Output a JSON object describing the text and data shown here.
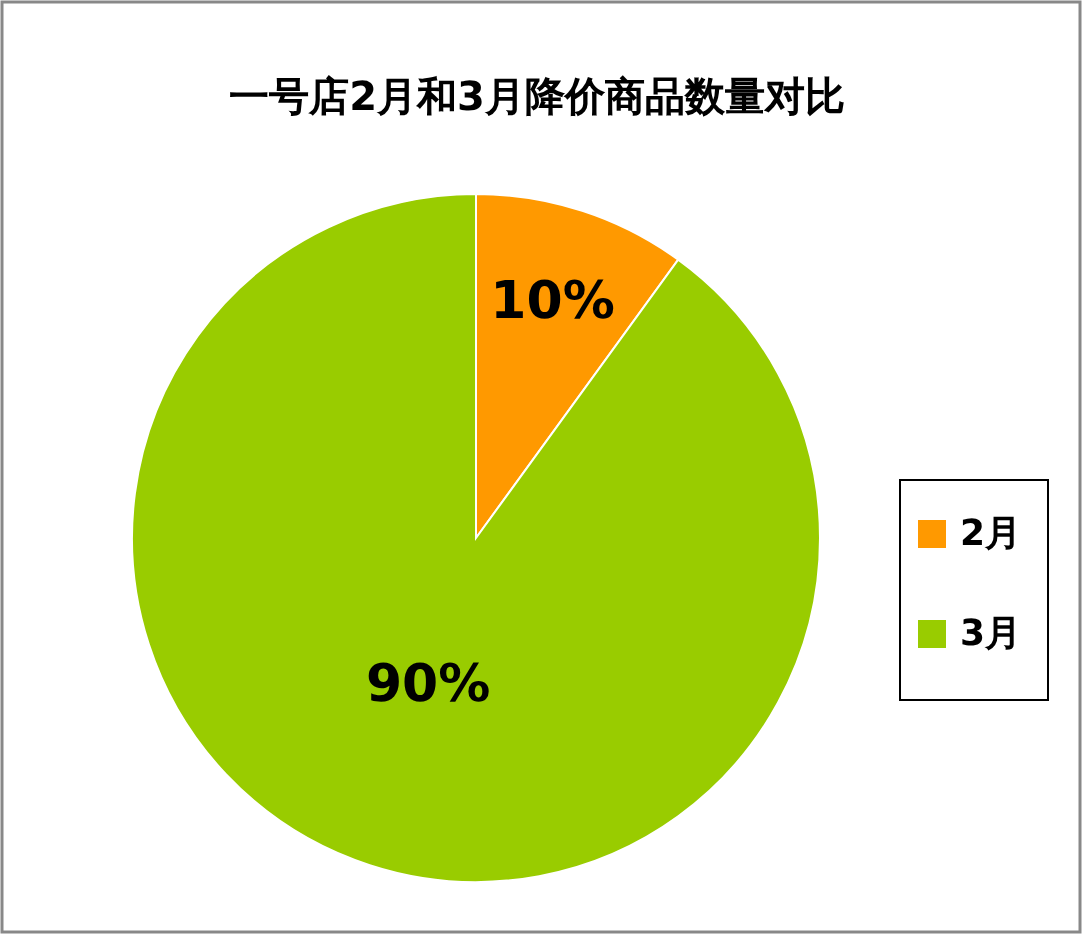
{
  "chart_data": {
    "type": "pie",
    "title": "一号店2月和3月降价商品数量对比",
    "categories": [
      "2月",
      "3月"
    ],
    "values": [
      10,
      90
    ],
    "colors": [
      "#ff9900",
      "#99cc00"
    ],
    "value_labels": [
      "10%",
      "90%"
    ],
    "legend": "right"
  }
}
